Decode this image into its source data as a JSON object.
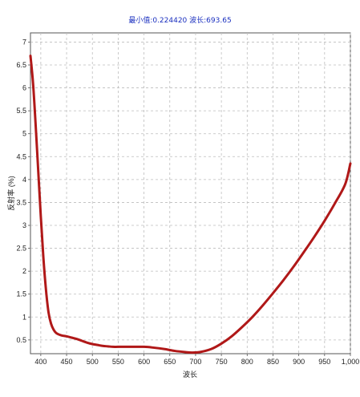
{
  "chart_data": {
    "type": "line",
    "title": "最小值:0.224420  波长:693.65",
    "xlabel": "波长",
    "ylabel": "反射率 (%)",
    "xlim": [
      380,
      1000
    ],
    "ylim": [
      0.2,
      7.2
    ],
    "x_ticks": [
      400,
      450,
      500,
      550,
      600,
      650,
      700,
      750,
      800,
      850,
      900,
      950,
      1000
    ],
    "x_tick_labels": [
      "400",
      "450",
      "500",
      "550",
      "600",
      "650",
      "700",
      "750",
      "800",
      "850",
      "900",
      "950",
      "1,000"
    ],
    "y_ticks": [
      0.5,
      1,
      1.5,
      2,
      2.5,
      3,
      3.5,
      4,
      4.5,
      5,
      5.5,
      6,
      6.5,
      7
    ],
    "y_tick_labels": [
      "0.5",
      "1",
      "1.5",
      "2",
      "2.5",
      "3",
      "3.5",
      "4",
      "4.5",
      "5",
      "5.5",
      "6",
      "6.5",
      "7"
    ],
    "grid": true,
    "series": [
      {
        "color": "#b01818",
        "x": [
          380,
          385,
          390,
          395,
          400,
          405,
          410,
          415,
          420,
          425,
          430,
          440,
          450,
          460,
          470,
          480,
          490,
          500,
          510,
          520,
          530,
          540,
          550,
          570,
          600,
          620,
          640,
          660,
          680,
          693.65,
          710,
          730,
          750,
          770,
          790,
          810,
          830,
          850,
          870,
          890,
          910,
          930,
          950,
          970,
          990,
          1000
        ],
        "y": [
          6.7,
          6.1,
          5.2,
          4.2,
          3.2,
          2.3,
          1.6,
          1.1,
          0.85,
          0.72,
          0.65,
          0.6,
          0.58,
          0.55,
          0.52,
          0.48,
          0.44,
          0.41,
          0.39,
          0.37,
          0.36,
          0.35,
          0.35,
          0.35,
          0.35,
          0.33,
          0.3,
          0.26,
          0.235,
          0.2244,
          0.24,
          0.3,
          0.42,
          0.58,
          0.78,
          1.0,
          1.25,
          1.52,
          1.8,
          2.1,
          2.42,
          2.75,
          3.1,
          3.48,
          3.9,
          4.35
        ]
      }
    ]
  }
}
